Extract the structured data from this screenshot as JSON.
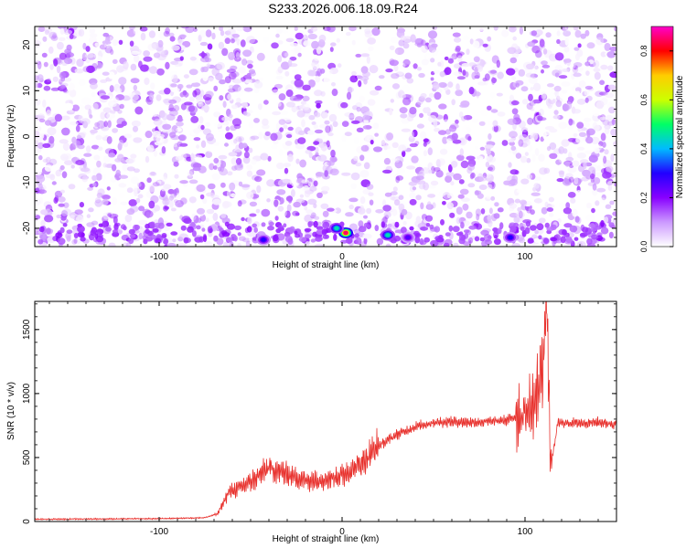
{
  "title": "S233.2026.006.18.09.R24",
  "chart_data": [
    {
      "type": "heatmap",
      "title": "S233.2026.006.18.09.R24",
      "xlabel": "Height of straight line (km)",
      "ylabel": "Frequency (Hz)",
      "xlim": [
        -168,
        150
      ],
      "ylim": [
        -24,
        24
      ],
      "xticks": [
        -100,
        0,
        100
      ],
      "yticks": [
        -20,
        -10,
        0,
        10,
        20
      ],
      "colorbar": {
        "label": "Normalized spectral amplitude",
        "range": [
          0,
          0.9
        ],
        "ticks": [
          "0.0",
          "0.2",
          "0.4",
          "0.6",
          "0.8"
        ]
      },
      "colormap": [
        "#ffffff",
        "#cc99ff",
        "#8800ff",
        "#2200ff",
        "#00bbff",
        "#00ff66",
        "#ccff00",
        "#ffcc00",
        "#ff0000",
        "#ff00cc"
      ],
      "background_level": 0.12,
      "hotspots": [
        {
          "x": 2,
          "y": -21,
          "value": 0.85
        },
        {
          "x": -3,
          "y": -20,
          "value": 0.45
        },
        {
          "x": -43,
          "y": -22.5,
          "value": 0.3
        },
        {
          "x": 25,
          "y": -21.5,
          "value": 0.45
        },
        {
          "x": 36,
          "y": -22,
          "value": 0.25
        },
        {
          "x": 92,
          "y": -22,
          "value": 0.3
        }
      ],
      "bands": [
        {
          "x": -40,
          "note": "vertical light band"
        },
        {
          "x": 0,
          "note": "vertical light band"
        },
        {
          "x": 20,
          "note": "vertical light band"
        },
        {
          "x": 88,
          "note": "vertical light band"
        }
      ]
    },
    {
      "type": "line",
      "xlabel": "Height of straight line (km)",
      "ylabel": "SNR (10 * v/v)",
      "xlim": [
        -168,
        150
      ],
      "ylim": [
        0,
        1720
      ],
      "xticks": [
        -100,
        0,
        100
      ],
      "yticks": [
        0,
        500,
        1000,
        1500
      ],
      "series": [
        {
          "color": "#e8322e",
          "points": [
            [
              -168,
              18
            ],
            [
              -100,
              22
            ],
            [
              -75,
              30
            ],
            [
              -68,
              60
            ],
            [
              -62,
              230
            ],
            [
              -55,
              270
            ],
            [
              -48,
              330
            ],
            [
              -40,
              420
            ],
            [
              -30,
              370
            ],
            [
              -20,
              320
            ],
            [
              -10,
              330
            ],
            [
              0,
              360
            ],
            [
              10,
              450
            ],
            [
              20,
              590
            ],
            [
              30,
              680
            ],
            [
              40,
              740
            ],
            [
              50,
              775
            ],
            [
              60,
              780
            ],
            [
              70,
              775
            ],
            [
              80,
              780
            ],
            [
              90,
              790
            ],
            [
              95,
              820
            ],
            [
              100,
              850
            ],
            [
              105,
              900
            ],
            [
              108,
              1100
            ],
            [
              110,
              1300
            ],
            [
              112,
              1690
            ],
            [
              114,
              420
            ],
            [
              118,
              770
            ],
            [
              130,
              770
            ],
            [
              140,
              775
            ],
            [
              150,
              760
            ]
          ]
        }
      ]
    }
  ]
}
